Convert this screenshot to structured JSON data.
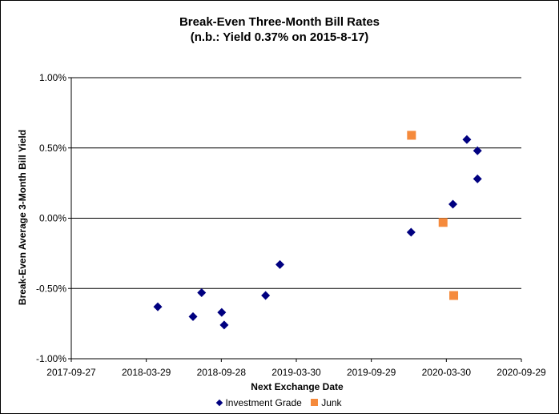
{
  "chart_data": {
    "type": "scatter",
    "title": "Break-Even Three-Month Bill Rates",
    "subtitle": "(n.b.: Yield 0.37% on 2015-8-17)",
    "xlabel": "Next Exchange Date",
    "ylabel": "Break-Even Average 3-Month  Bill Yield",
    "xlim": [
      "2017-09-27",
      "2020-09-29"
    ],
    "x_ticks": [
      "2017-09-27",
      "2018-03-29",
      "2018-09-28",
      "2019-03-30",
      "2019-09-29",
      "2020-03-30",
      "2020-09-29"
    ],
    "ylim": [
      -1.0,
      1.0
    ],
    "y_ticks": [
      "1.00%",
      "0.50%",
      "0.00%",
      "-0.50%",
      "-1.00%"
    ],
    "y_tick_values": [
      1.0,
      0.5,
      0.0,
      -0.5,
      -1.0
    ],
    "grid": "horizontal",
    "legend_position": "bottom",
    "series": [
      {
        "name": "Investment Grade",
        "color": "#000080",
        "marker": "diamond",
        "points": [
          {
            "x": "2018-04-26",
            "y": -0.63
          },
          {
            "x": "2018-07-21",
            "y": -0.7
          },
          {
            "x": "2018-08-11",
            "y": -0.53
          },
          {
            "x": "2018-09-29",
            "y": -0.67
          },
          {
            "x": "2018-10-05",
            "y": -0.76
          },
          {
            "x": "2019-01-14",
            "y": -0.55
          },
          {
            "x": "2019-02-18",
            "y": -0.33
          },
          {
            "x": "2020-01-04",
            "y": -0.1
          },
          {
            "x": "2020-04-15",
            "y": 0.1
          },
          {
            "x": "2020-05-19",
            "y": 0.56
          },
          {
            "x": "2020-06-14",
            "y": 0.48
          },
          {
            "x": "2020-06-14",
            "y": 0.28
          }
        ]
      },
      {
        "name": "Junk",
        "color": "#F58A3C",
        "marker": "square",
        "points": [
          {
            "x": "2020-01-05",
            "y": 0.59
          },
          {
            "x": "2020-03-22",
            "y": -0.03
          },
          {
            "x": "2020-04-17",
            "y": -0.55
          }
        ]
      }
    ]
  }
}
